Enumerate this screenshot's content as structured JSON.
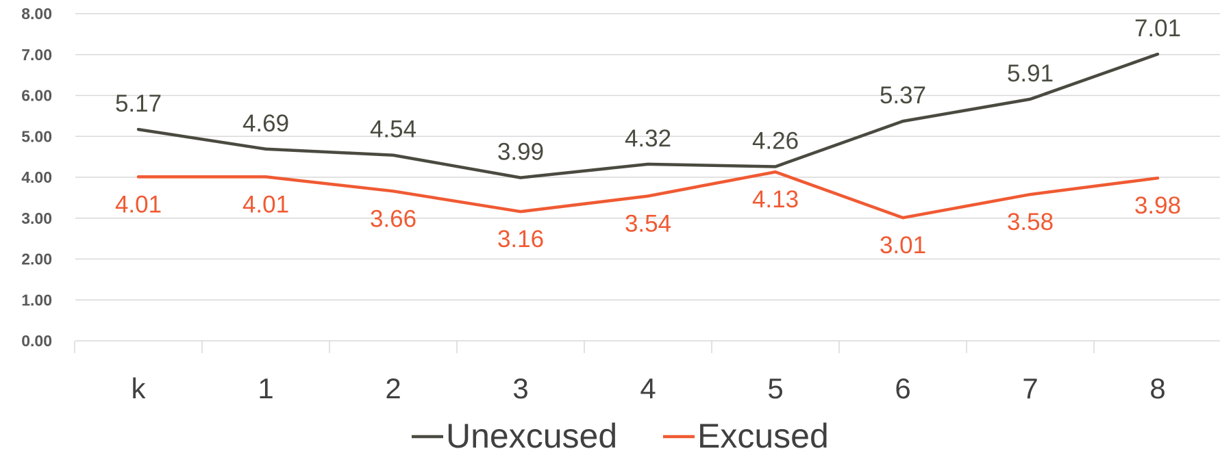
{
  "chart_data": {
    "type": "line",
    "categories": [
      "k",
      "1",
      "2",
      "3",
      "4",
      "5",
      "6",
      "7",
      "8"
    ],
    "series": [
      {
        "name": "Unexcused",
        "color": "#4a4a40",
        "values": [
          5.17,
          4.69,
          4.54,
          3.99,
          4.32,
          4.26,
          5.37,
          5.91,
          7.01
        ],
        "labels": [
          "5.17",
          "4.69",
          "4.54",
          "3.99",
          "4.32",
          "4.26",
          "5.37",
          "5.91",
          "7.01"
        ],
        "label_position": "above"
      },
      {
        "name": "Excused",
        "color": "#f05a33",
        "values": [
          4.01,
          4.01,
          3.66,
          3.16,
          3.54,
          4.13,
          3.01,
          3.58,
          3.98
        ],
        "labels": [
          "4.01",
          "4.01",
          "3.66",
          "3.16",
          "3.54",
          "4.13",
          "3.01",
          "3.58",
          "3.98"
        ],
        "label_position": "below"
      }
    ],
    "ylim": [
      0,
      8
    ],
    "yticks": [
      "0.00",
      "1.00",
      "2.00",
      "3.00",
      "4.00",
      "5.00",
      "6.00",
      "7.00",
      "8.00"
    ],
    "ytick_values": [
      0,
      1,
      2,
      3,
      4,
      5,
      6,
      7,
      8
    ],
    "grid": true,
    "gridline_color": "#d9d9d9",
    "legend_position": "bottom"
  }
}
